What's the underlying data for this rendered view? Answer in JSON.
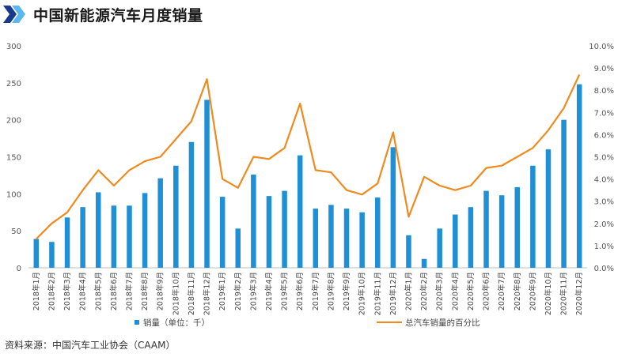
{
  "title": "中国新能源汽车月度销量",
  "source": "资料来源：中国汽车工业协会（CAAM）",
  "colors": {
    "bar": "#1f8fd6",
    "line": "#ef8a1e",
    "logo_dark": "#1a3a8c",
    "logo_light": "#5bb7f0"
  },
  "chart_data": {
    "type": "bar",
    "title": "中国新能源汽车月度销量",
    "categories": [
      "2018年1月",
      "2018年2月",
      "2018年3月",
      "2018年4月",
      "2018年5月",
      "2018年6月",
      "2018年7月",
      "2018年8月",
      "2018年9月",
      "2018年10月",
      "2018年11月",
      "2018年12月",
      "2019年1月",
      "2019年2月",
      "2019年3月",
      "2019年4月",
      "2019年5月",
      "2019年6月",
      "2019年7月",
      "2019年8月",
      "2019年9月",
      "2019年10月",
      "2019年11月",
      "2019年12月",
      "2020年1月",
      "2020年2月",
      "2020年3月",
      "2020年4月",
      "2020年5月",
      "2020年6月",
      "2020年7月",
      "2020年8月",
      "2020年9月",
      "2020年10月",
      "2020年11月",
      "2020年12月"
    ],
    "series": [
      {
        "name": "销量（单位：千）",
        "type": "bar",
        "axis": "left",
        "values": [
          39,
          35,
          68,
          82,
          102,
          84,
          84,
          101,
          121,
          138,
          170,
          227,
          96,
          53,
          126,
          97,
          104,
          152,
          80,
          85,
          80,
          75,
          95,
          163,
          44,
          12,
          53,
          72,
          82,
          104,
          98,
          109,
          138,
          160,
          200,
          248
        ]
      },
      {
        "name": "总汽车销量的百分比",
        "type": "line",
        "axis": "right",
        "values": [
          1.3,
          2.0,
          2.5,
          3.5,
          4.4,
          3.7,
          4.4,
          4.8,
          5.0,
          5.8,
          6.6,
          8.5,
          4.0,
          3.6,
          5.0,
          4.9,
          5.4,
          7.4,
          4.4,
          4.3,
          3.5,
          3.3,
          3.8,
          6.1,
          2.3,
          4.1,
          3.7,
          3.5,
          3.7,
          4.5,
          4.6,
          5.0,
          5.4,
          6.2,
          7.2,
          8.7
        ]
      }
    ],
    "ylim": [
      0,
      300
    ],
    "yticks": [
      "0",
      "50",
      "100",
      "150",
      "200",
      "250",
      "300"
    ],
    "y2lim": [
      0,
      10
    ],
    "y2ticks": [
      "0.0%",
      "1.0%",
      "2.0%",
      "3.0%",
      "4.0%",
      "5.0%",
      "6.0%",
      "7.0%",
      "8.0%",
      "9.0%",
      "10.0%"
    ],
    "grid": false,
    "legend_position": "bottom"
  }
}
